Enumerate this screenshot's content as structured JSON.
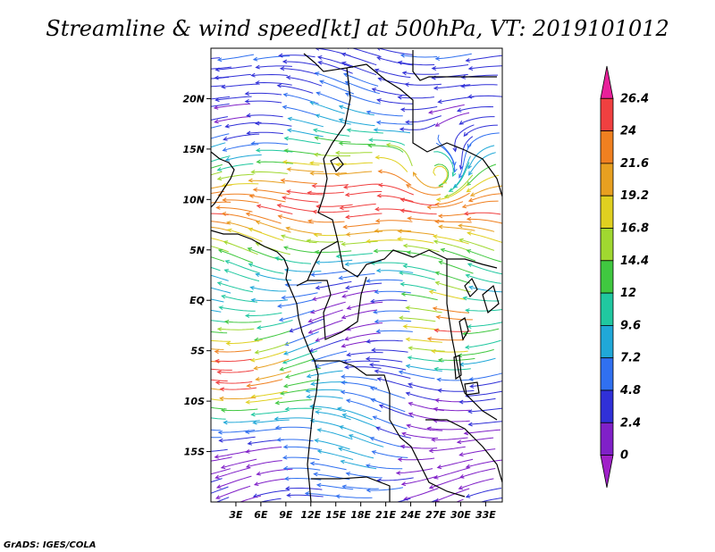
{
  "title": "Streamline & wind speed[kt] at 500hPa, VT: 2019101012",
  "footer": "GrADS: IGES/COLA",
  "map": {
    "lat_ticks": [
      {
        "label": "20N",
        "value": 20
      },
      {
        "label": "15N",
        "value": 15
      },
      {
        "label": "10N",
        "value": 10
      },
      {
        "label": "5N",
        "value": 5
      },
      {
        "label": "EQ",
        "value": 0
      },
      {
        "label": "5S",
        "value": -5
      },
      {
        "label": "10S",
        "value": -10
      },
      {
        "label": "15S",
        "value": -15
      }
    ],
    "lon_ticks": [
      {
        "label": "3E",
        "value": 3
      },
      {
        "label": "6E",
        "value": 6
      },
      {
        "label": "9E",
        "value": 9
      },
      {
        "label": "12E",
        "value": 12
      },
      {
        "label": "15E",
        "value": 15
      },
      {
        "label": "18E",
        "value": 18
      },
      {
        "label": "21E",
        "value": 21
      },
      {
        "label": "24E",
        "value": 24
      },
      {
        "label": "27E",
        "value": 27
      },
      {
        "label": "30E",
        "value": 30
      },
      {
        "label": "33E",
        "value": 33
      }
    ],
    "lat_range": [
      -20,
      25
    ],
    "lon_range": [
      0,
      35
    ]
  },
  "colorbar": {
    "labels": [
      "26.4",
      "24",
      "21.6",
      "19.2",
      "16.8",
      "14.4",
      "12",
      "9.6",
      "7.2",
      "4.8",
      "2.4",
      "0"
    ],
    "colors": [
      "#e8209a",
      "#f04040",
      "#f08020",
      "#e8a020",
      "#e0d020",
      "#a0d830",
      "#40c840",
      "#20c8a0",
      "#20a8d8",
      "#3070f0",
      "#3030d8",
      "#8020c8",
      "#a020c8"
    ]
  }
}
